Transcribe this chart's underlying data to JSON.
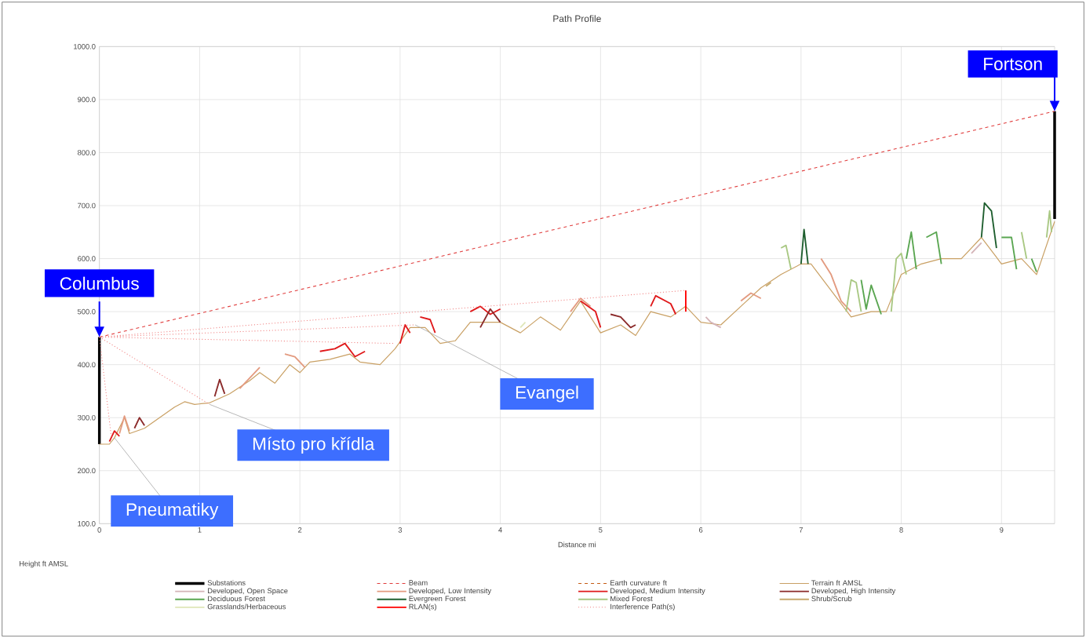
{
  "chart_data": {
    "type": "line",
    "title": "Path Profile",
    "xlabel": "Distance mi",
    "xlim": [
      0,
      9.53
    ],
    "xticks": [
      0,
      1,
      2,
      3,
      4,
      5,
      6,
      7,
      8,
      9
    ],
    "ylim": [
      100,
      1000
    ],
    "yticks": [
      {
        "value": 100,
        "label": "100.0"
      },
      {
        "value": 200,
        "label": "200.0"
      },
      {
        "value": 300,
        "label": "300.0"
      },
      {
        "value": 400,
        "label": "400.0"
      },
      {
        "value": 500,
        "label": "500.0"
      },
      {
        "value": 600,
        "label": "600.0"
      },
      {
        "value": 700,
        "label": "700.0"
      },
      {
        "value": 800,
        "label": "800.0"
      },
      {
        "value": 900,
        "label": "900.0"
      },
      {
        "value": 1000,
        "label": "1000.0"
      }
    ],
    "grid": true,
    "legend": "bottom",
    "marker": "none",
    "series": [
      {
        "name": "Substations",
        "color": "#000000",
        "line_style": "solid",
        "x": [
          0,
          0,
          null,
          9.53,
          9.53
        ],
        "values": [
          250,
          452,
          null,
          675,
          878
        ]
      },
      {
        "name": "Beam",
        "color": "#e03c3c",
        "line_style": "dashed",
        "x": [
          0,
          9.53
        ],
        "values": [
          452,
          878
        ]
      },
      {
        "name": "Earth curvature ft",
        "color": "#c55a11",
        "line_style": "dashed"
      },
      {
        "name": "Terrain ft AMSL",
        "color": "#c9a064",
        "line_style": "solid",
        "x": [
          0,
          0.1,
          0.15,
          0.25,
          0.3,
          0.45,
          0.6,
          0.75,
          0.85,
          0.95,
          1.1,
          1.3,
          1.5,
          1.6,
          1.75,
          1.9,
          2.0,
          2.1,
          2.3,
          2.5,
          2.6,
          2.8,
          2.95,
          3.1,
          3.25,
          3.4,
          3.55,
          3.7,
          3.85,
          4.0,
          4.2,
          4.4,
          4.6,
          4.8,
          5.0,
          5.2,
          5.35,
          5.5,
          5.7,
          5.85,
          6.0,
          6.2,
          6.4,
          6.6,
          6.8,
          7.0,
          7.1,
          7.3,
          7.5,
          7.7,
          7.85,
          8.0,
          8.2,
          8.4,
          8.6,
          8.8,
          9.0,
          9.2,
          9.35,
          9.53
        ],
        "values": [
          250,
          250,
          262,
          300,
          270,
          280,
          300,
          320,
          330,
          325,
          328,
          345,
          370,
          385,
          365,
          400,
          385,
          405,
          410,
          420,
          405,
          400,
          430,
          470,
          470,
          440,
          445,
          480,
          480,
          480,
          460,
          490,
          465,
          520,
          460,
          475,
          455,
          500,
          490,
          510,
          480,
          475,
          510,
          545,
          570,
          590,
          590,
          540,
          490,
          500,
          500,
          570,
          590,
          600,
          600,
          640,
          590,
          600,
          570,
          670
        ]
      },
      {
        "name": "Developed, Open Space",
        "color": "#d4b4b8",
        "line_style": "solid",
        "x": [
          6.05,
          6.1,
          6.2,
          null,
          8.7,
          8.8
        ],
        "values": [
          490,
          480,
          470,
          null,
          610,
          630
        ]
      },
      {
        "name": "Developed, Low Intensity",
        "color": "#e39b80",
        "line_style": "solid",
        "x": [
          0.2,
          0.25,
          0.3,
          null,
          1.4,
          1.5,
          1.6,
          null,
          1.85,
          1.95,
          2.05,
          null,
          4.7,
          4.8,
          4.9,
          null,
          6.4,
          6.5,
          6.6,
          null,
          7.2,
          7.3,
          7.4,
          7.5
        ],
        "values": [
          270,
          303,
          275,
          null,
          355,
          375,
          395,
          null,
          420,
          415,
          395,
          null,
          500,
          525,
          510,
          null,
          520,
          535,
          525,
          null,
          600,
          570,
          520,
          500
        ]
      },
      {
        "name": "Developed, Medium Intensity",
        "color": "#e0191b",
        "line_style": "solid",
        "x": [
          0.1,
          0.15,
          0.2,
          null,
          2.2,
          2.35,
          2.45,
          2.55,
          2.65,
          null,
          3.0,
          3.05,
          3.1,
          null,
          3.2,
          3.3,
          3.35,
          null,
          3.7,
          3.8,
          3.9,
          4.0,
          null,
          4.8,
          4.95,
          5.0,
          null,
          5.5,
          5.55,
          5.7,
          5.75
        ],
        "values": [
          255,
          275,
          265,
          null,
          425,
          430,
          440,
          415,
          425,
          null,
          440,
          475,
          460,
          null,
          490,
          485,
          460,
          null,
          500,
          510,
          495,
          505,
          null,
          520,
          500,
          470,
          null,
          510,
          530,
          515,
          495
        ]
      },
      {
        "name": "Developed, High Intensity",
        "color": "#8b2a2a",
        "line_style": "solid",
        "x": [
          0.35,
          0.4,
          0.45,
          null,
          1.15,
          1.2,
          1.25,
          null,
          3.8,
          3.9,
          4.0,
          null,
          5.1,
          5.2,
          5.3,
          5.35
        ],
        "values": [
          280,
          300,
          285,
          null,
          340,
          372,
          345,
          null,
          470,
          505,
          480,
          null,
          495,
          490,
          470,
          475
        ]
      },
      {
        "name": "Deciduous Forest",
        "color": "#5aa651",
        "line_style": "solid",
        "x": [
          7.6,
          7.65,
          7.7,
          7.8,
          null,
          8.05,
          8.1,
          8.15,
          null,
          8.25,
          8.35,
          8.4,
          null,
          9.0,
          9.1,
          9.15,
          null,
          9.3,
          9.35
        ],
        "values": [
          560,
          505,
          550,
          495,
          null,
          600,
          650,
          580,
          null,
          640,
          650,
          590,
          null,
          640,
          640,
          580,
          null,
          600,
          575
        ]
      },
      {
        "name": "Evergreen Forest",
        "color": "#1e5e2e",
        "line_style": "solid",
        "x": [
          7.0,
          7.03,
          7.07,
          null,
          8.8,
          8.83,
          8.9,
          8.95
        ],
        "values": [
          590,
          655,
          590,
          null,
          640,
          705,
          690,
          620
        ]
      },
      {
        "name": "Mixed Forest",
        "color": "#a9c883",
        "line_style": "solid",
        "x": [
          6.8,
          6.85,
          6.9,
          null,
          7.45,
          7.5,
          7.55,
          7.6,
          null,
          7.9,
          7.95,
          8.0,
          8.05,
          null,
          9.2,
          9.25,
          null,
          9.45,
          9.48,
          9.5
        ],
        "values": [
          620,
          625,
          580,
          null,
          500,
          560,
          555,
          500,
          null,
          500,
          600,
          610,
          570,
          null,
          650,
          600,
          null,
          640,
          690,
          650
        ]
      },
      {
        "name": "Shrub/Scrub",
        "color": "#c8a96e",
        "line_style": "solid",
        "x": [
          6.65,
          6.7
        ],
        "values": [
          548,
          555
        ]
      },
      {
        "name": "Grasslands/Herbaceous",
        "color": "#dfe6b8",
        "line_style": "solid",
        "x": [
          4.2,
          4.25
        ],
        "values": [
          470,
          480
        ]
      },
      {
        "name": "RLAN(s)",
        "color": "#ff0000",
        "line_style": "solid",
        "x": [
          5.85,
          5.85
        ],
        "values": [
          500,
          540
        ]
      },
      {
        "name": "Interference Path(s)",
        "color": "#f08080",
        "line_style": "dotted",
        "x": [
          0,
          0.12,
          null,
          0,
          1.1,
          null,
          0,
          2.95,
          null,
          0,
          3.15,
          null,
          0,
          5.85
        ],
        "values": [
          452,
          262,
          null,
          452,
          325,
          null,
          452,
          440,
          null,
          452,
          475,
          null,
          452,
          540
        ]
      }
    ],
    "annotations": [
      {
        "text": "Columbus",
        "x": 0,
        "y": 452
      },
      {
        "text": "Fortson",
        "x": 9.53,
        "y": 878
      },
      {
        "text": "Pneumatiky",
        "x": 0.15,
        "y": 262
      },
      {
        "text": "Místo pro křídla",
        "x": 1.1,
        "y": 325
      },
      {
        "text": "Evangel",
        "x": 3.15,
        "y": 475
      },
      "Height ft AMSL"
    ]
  }
}
